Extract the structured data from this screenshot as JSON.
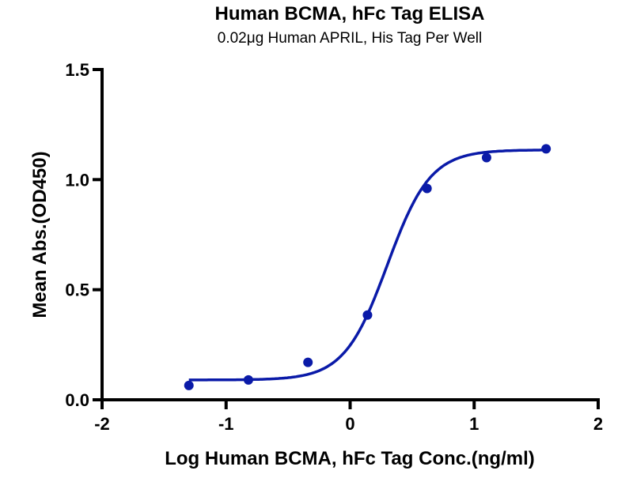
{
  "chart_data": {
    "type": "scatter",
    "title": "Human BCMA, hFc Tag ELISA",
    "subtitle": "0.02μg Human APRIL, His Tag Per Well",
    "xlabel": "Log Human BCMA, hFc Tag Conc.(ng/ml)",
    "ylabel": "Mean Abs.(OD450)",
    "xlim": [
      -2,
      2
    ],
    "ylim": [
      0,
      1.5
    ],
    "xticks": [
      -2,
      -1,
      0,
      1,
      2
    ],
    "xtick_labels": [
      "-2",
      "-1",
      "0",
      "1",
      "2"
    ],
    "yticks": [
      0,
      0.5,
      1.0,
      1.5
    ],
    "ytick_labels": [
      "0.0",
      "0.5",
      "1.0",
      "1.5"
    ],
    "grid": false,
    "series": [
      {
        "name": "Human BCMA, hFc Tag",
        "color": "#0a1aa8",
        "x": [
          -1.3,
          -0.82,
          -0.34,
          0.14,
          0.62,
          1.1,
          1.58
        ],
        "y": [
          0.065,
          0.09,
          0.17,
          0.385,
          0.96,
          1.1,
          1.14
        ]
      }
    ],
    "fit": {
      "model": "4PL",
      "bottom": 0.09,
      "top": 1.135,
      "logEC50": 0.3,
      "hill": 2.5,
      "x_range": [
        -1.3,
        1.58
      ],
      "color": "#0a1aa8"
    }
  }
}
